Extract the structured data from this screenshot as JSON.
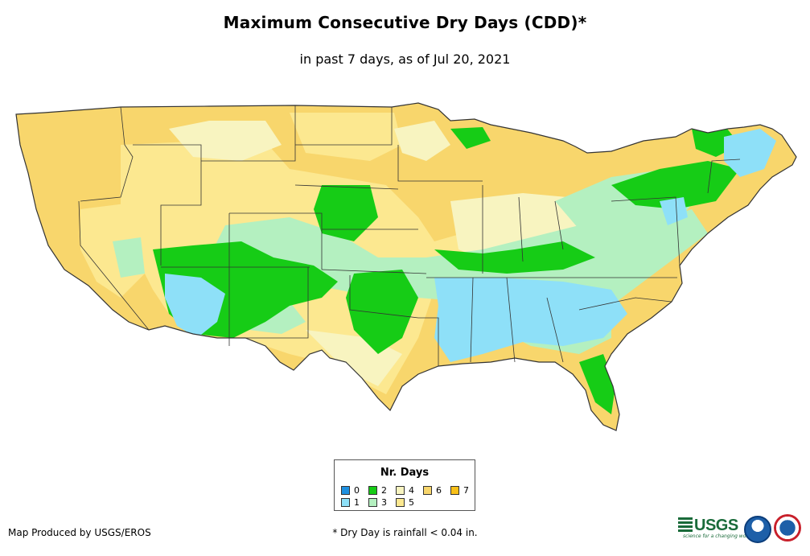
{
  "title": "Maximum Consecutive Dry Days (CDD)*",
  "subtitle": "in past 7 days, as of Jul 20, 2021",
  "legend": {
    "title": "Nr. Days",
    "items": [
      {
        "label": "0",
        "color": "#1e90e0"
      },
      {
        "label": "1",
        "color": "#8ee0f8"
      },
      {
        "label": "2",
        "color": "#16cc16"
      },
      {
        "label": "3",
        "color": "#b4f0c0"
      },
      {
        "label": "4",
        "color": "#f8f4c0"
      },
      {
        "label": "5",
        "color": "#fce890"
      },
      {
        "label": "6",
        "color": "#f8d66c"
      },
      {
        "label": "7",
        "color": "#f8c018"
      }
    ]
  },
  "credit": "Map Produced by USGS/EROS",
  "footnote": "* Dry Day is rainfall < 0.04 in.",
  "logos": {
    "usgs_label": "USGS",
    "usgs_tagline": "science for a changing world",
    "noaa_icon": "noaa-logo-icon",
    "nws_icon": "nws-logo-icon"
  }
}
